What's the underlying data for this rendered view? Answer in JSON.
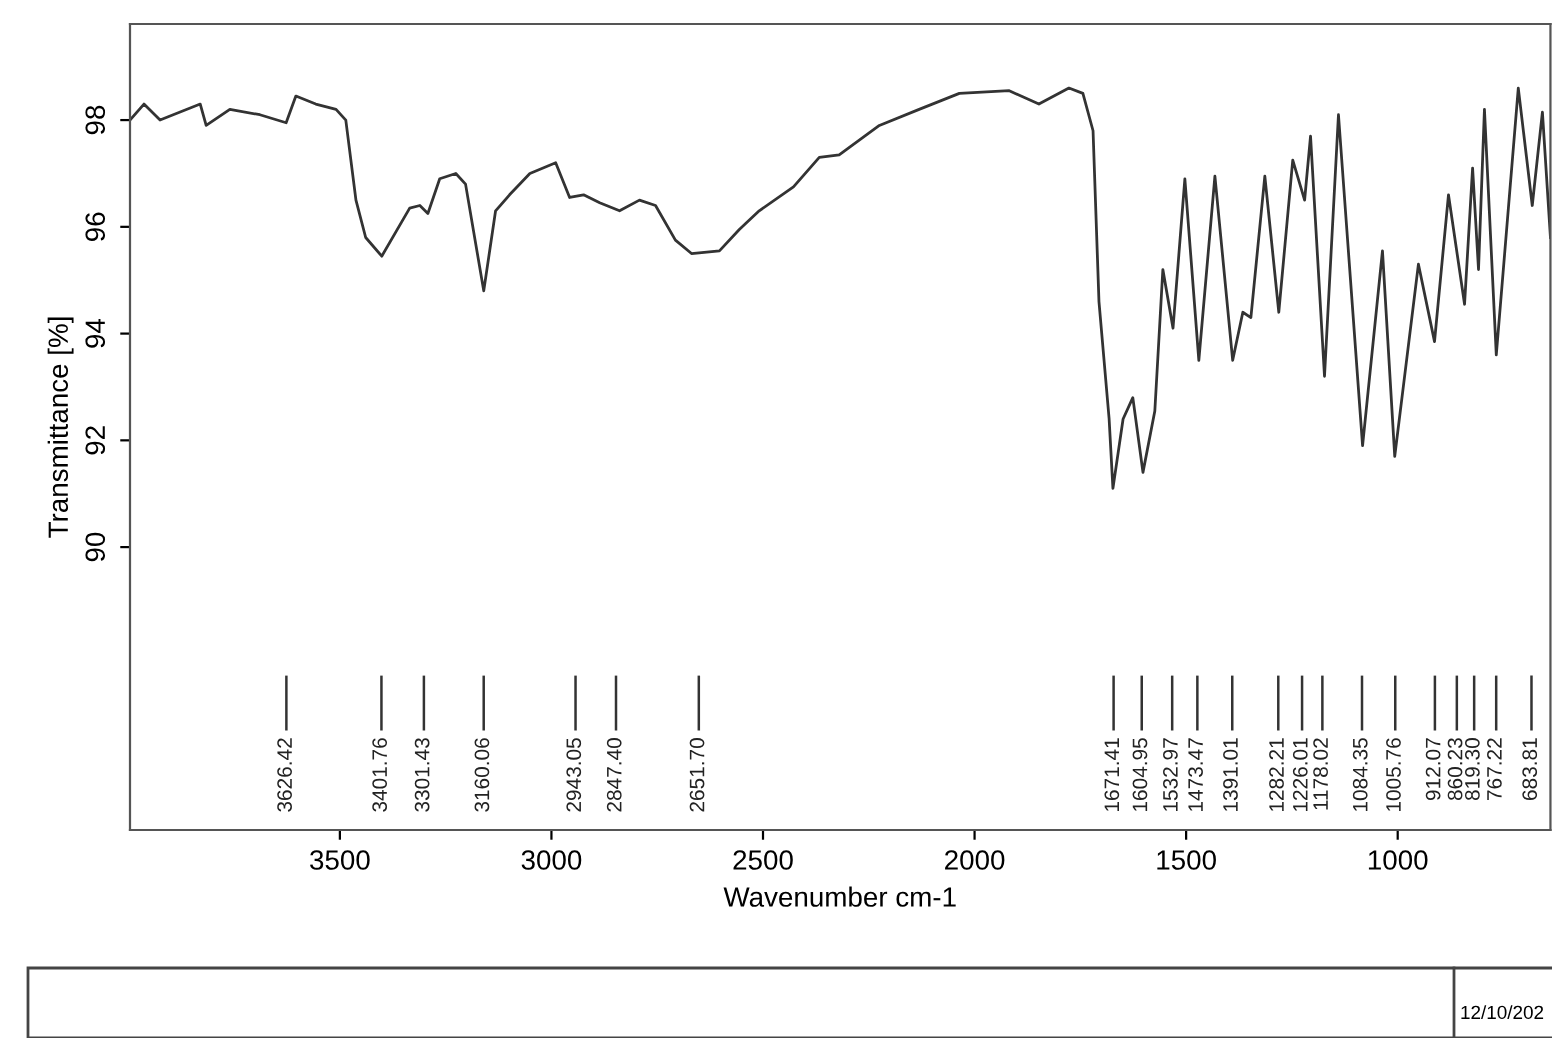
{
  "chart_data": {
    "type": "line",
    "xlabel": "Wavenumber cm-1",
    "ylabel": "Transmittance [%]",
    "xlim": [
      3996,
      639
    ],
    "xticks": [
      3500,
      3000,
      2500,
      2000,
      1500,
      1000
    ],
    "ylim": [
      84.7,
      99.8
    ],
    "yticks": [
      90,
      92,
      94,
      96,
      98
    ],
    "grid": false,
    "legend": false,
    "marker": "none",
    "line_style": "solid",
    "series": [
      {
        "color": "#333333",
        "x": [
          3996,
          3963,
          3925,
          3830,
          3816,
          3760,
          3689,
          3627,
          3604,
          3557,
          3509,
          3486,
          3462,
          3439,
          3401,
          3335,
          3311,
          3292,
          3264,
          3226,
          3203,
          3160,
          3132,
          3099,
          3051,
          2990,
          2957,
          2924,
          2886,
          2839,
          2792,
          2754,
          2707,
          2669,
          2603,
          2556,
          2509,
          2428,
          2367,
          2320,
          2225,
          2131,
          2036,
          1918,
          1848,
          1777,
          1744,
          1720,
          1706,
          1682,
          1673,
          1649,
          1626,
          1602,
          1574,
          1555,
          1531,
          1503,
          1470,
          1432,
          1390,
          1366,
          1347,
          1314,
          1281,
          1248,
          1220,
          1206,
          1173,
          1140,
          1083,
          1036,
          1007,
          951,
          913,
          880,
          842,
          823,
          809,
          795,
          767,
          715,
          682,
          658,
          639
        ],
        "values": [
          98.0,
          98.3,
          98.0,
          98.3,
          97.9,
          98.2,
          98.1,
          97.95,
          98.45,
          98.3,
          98.2,
          98.0,
          96.5,
          95.8,
          95.45,
          96.35,
          96.4,
          96.25,
          96.9,
          97.0,
          96.8,
          94.8,
          96.3,
          96.6,
          97.0,
          97.2,
          96.55,
          96.6,
          96.45,
          96.3,
          96.5,
          96.4,
          95.75,
          95.5,
          95.55,
          95.95,
          96.3,
          96.75,
          97.3,
          97.35,
          97.9,
          98.2,
          98.5,
          98.55,
          98.3,
          98.6,
          98.5,
          97.8,
          94.6,
          92.4,
          91.1,
          92.4,
          92.8,
          91.4,
          92.55,
          95.2,
          94.1,
          96.9,
          93.5,
          96.95,
          93.5,
          94.4,
          94.3,
          96.95,
          94.4,
          97.25,
          96.5,
          97.7,
          93.2,
          98.1,
          91.9,
          95.55,
          91.7,
          95.3,
          93.85,
          96.6,
          94.55,
          97.1,
          95.2,
          98.2,
          93.6,
          98.6,
          96.4,
          98.15,
          95.8
        ]
      }
    ],
    "ref_lines": [
      {
        "axis": "x",
        "value": 3626.42,
        "label": "3626.42"
      },
      {
        "axis": "x",
        "value": 3401.76,
        "label": "3401.76"
      },
      {
        "axis": "x",
        "value": 3301.43,
        "label": "3301.43"
      },
      {
        "axis": "x",
        "value": 3160.06,
        "label": "3160.06"
      },
      {
        "axis": "x",
        "value": 2943.05,
        "label": "2943.05"
      },
      {
        "axis": "x",
        "value": 2847.4,
        "label": "2847.40"
      },
      {
        "axis": "x",
        "value": 2651.7,
        "label": "2651.70"
      },
      {
        "axis": "x",
        "value": 1671.41,
        "label": "1671.41"
      },
      {
        "axis": "x",
        "value": 1604.95,
        "label": "1604.95"
      },
      {
        "axis": "x",
        "value": 1532.97,
        "label": "1532.97"
      },
      {
        "axis": "x",
        "value": 1473.47,
        "label": "1473.47"
      },
      {
        "axis": "x",
        "value": 1391.01,
        "label": "1391.01"
      },
      {
        "axis": "x",
        "value": 1282.21,
        "label": "1282.21"
      },
      {
        "axis": "x",
        "value": 1226.01,
        "label": "1226.01"
      },
      {
        "axis": "x",
        "value": 1178.02,
        "label": "1178.02"
      },
      {
        "axis": "x",
        "value": 1084.35,
        "label": "1084.35"
      },
      {
        "axis": "x",
        "value": 1005.76,
        "label": "1005.76"
      },
      {
        "axis": "x",
        "value": 912.07,
        "label": "912.07"
      },
      {
        "axis": "x",
        "value": 860.23,
        "label": "860.23"
      },
      {
        "axis": "x",
        "value": 819.3,
        "label": "819.30"
      },
      {
        "axis": "x",
        "value": 767.22,
        "label": "767.22"
      },
      {
        "axis": "x",
        "value": 683.81,
        "label": "683.81"
      }
    ],
    "annotations": [
      "12/10/202"
    ]
  }
}
